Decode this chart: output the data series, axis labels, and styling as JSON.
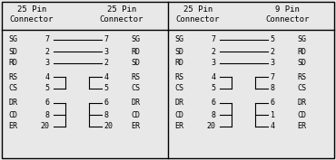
{
  "bg_color": "#e8e8e8",
  "border_color": "#000000",
  "text_color": "#000000",
  "fig_width": 3.7,
  "fig_height": 1.77,
  "dpi": 100,
  "left_panel": {
    "header_left": "25 Pin\nConnector",
    "header_right": "25 Pin\nConnector",
    "rows_straight": [
      {
        "left_label": "SG",
        "left_pin": "7",
        "right_pin": "7",
        "right_label": "SG"
      },
      {
        "left_label": "SD",
        "left_pin": "2",
        "right_pin": "3",
        "right_label": "RD"
      },
      {
        "left_label": "RD",
        "left_pin": "3",
        "right_pin": "2",
        "right_label": "SD"
      }
    ],
    "rows_bracket1": [
      {
        "left_label": "RS",
        "left_pin": "4",
        "right_pin": "4",
        "right_label": "RS"
      },
      {
        "left_label": "CS",
        "left_pin": "5",
        "right_pin": "5",
        "right_label": "CS"
      }
    ],
    "rows_bracket2": [
      {
        "left_label": "DR",
        "left_pin": "6",
        "right_pin": "6",
        "right_label": "DR"
      },
      {
        "left_label": "CD",
        "left_pin": "8",
        "right_pin": "8",
        "right_label": "CD"
      },
      {
        "left_label": "ER",
        "left_pin": "20",
        "right_pin": "20",
        "right_label": "ER"
      }
    ]
  },
  "right_panel": {
    "header_left": "25 Pin\nConnector",
    "header_right": "9 Pin\nConnector",
    "rows_straight": [
      {
        "left_label": "SG",
        "left_pin": "7",
        "right_pin": "5",
        "right_label": "SG"
      },
      {
        "left_label": "SD",
        "left_pin": "2",
        "right_pin": "2",
        "right_label": "RD"
      },
      {
        "left_label": "RD",
        "left_pin": "3",
        "right_pin": "3",
        "right_label": "SD"
      }
    ],
    "rows_bracket1": [
      {
        "left_label": "RS",
        "left_pin": "4",
        "right_pin": "7",
        "right_label": "RS"
      },
      {
        "left_label": "CS",
        "left_pin": "5",
        "right_pin": "8",
        "right_label": "CS"
      }
    ],
    "rows_bracket2": [
      {
        "left_label": "DR",
        "left_pin": "6",
        "right_pin": "6",
        "right_label": "DR"
      },
      {
        "left_label": "CD",
        "left_pin": "8",
        "right_pin": "1",
        "right_label": "CD"
      },
      {
        "left_label": "ER",
        "left_pin": "20",
        "right_pin": "4",
        "right_label": "ER"
      }
    ]
  },
  "font_size_header": 6.5,
  "font_size_label": 6.0
}
